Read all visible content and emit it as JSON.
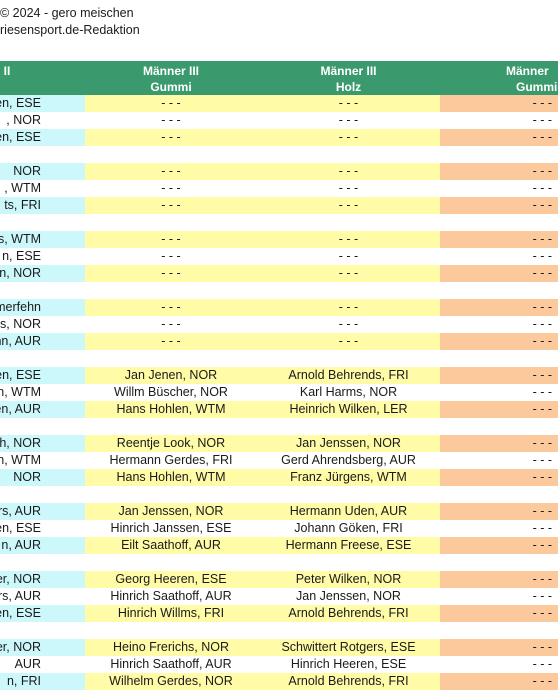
{
  "header": {
    "copyright": "© 2024 - gero meischen",
    "editorial": "riesensport.de-Redaktion"
  },
  "colors": {
    "header_bg": "#3a9a6e",
    "cyan": "#ccf8fc",
    "yellow": "#fffba6",
    "orange": "#fcc99c",
    "white": "#ffffff"
  },
  "table": {
    "headers": [
      {
        "line1": "II",
        "line2": ""
      },
      {
        "line1": "Männer III",
        "line2": "Gummi"
      },
      {
        "line1": "Männer III",
        "line2": "Holz"
      },
      {
        "line1": "Männer",
        "line2": "Gummi"
      }
    ],
    "groups": [
      [
        {
          "shade": "color",
          "c0": "en, ESE",
          "c1": "- - -",
          "c2": "- - -",
          "c3": "- - -"
        },
        {
          "shade": "white",
          "c0": ", NOR",
          "c1": "- - -",
          "c2": "- - -",
          "c3": "- - -"
        },
        {
          "shade": "color",
          "c0": "en, ESE",
          "c1": "- - -",
          "c2": "- - -",
          "c3": "- - -"
        }
      ],
      [
        {
          "shade": "color",
          "c0": "NOR",
          "c1": "- - -",
          "c2": "- - -",
          "c3": "- - -"
        },
        {
          "shade": "white",
          "c0": ", WTM",
          "c1": "- - -",
          "c2": "- - -",
          "c3": "- - -"
        },
        {
          "shade": "color",
          "c0": "ts, FRI",
          "c1": "- - -",
          "c2": "- - -",
          "c3": "- - -"
        }
      ],
      [
        {
          "shade": "color",
          "c0": "efs, WTM",
          "c1": "- - -",
          "c2": "- - -",
          "c3": "- - -"
        },
        {
          "shade": "white",
          "c0": "n, ESE",
          "c1": "- - -",
          "c2": "- - -",
          "c3": "- - -"
        },
        {
          "shade": "color",
          "c0": "en, NOR",
          "c1": "- - -",
          "c2": "- - -",
          "c3": "- - -"
        }
      ],
      [
        {
          "shade": "color",
          "c0": "erumerfehn",
          "c1": "- - -",
          "c2": "- - -",
          "c3": "- - -"
        },
        {
          "shade": "white",
          "c0": "s, NOR",
          "c1": "- - -",
          "c2": "- - -",
          "c3": "- - -"
        },
        {
          "shade": "color",
          "c0": "nn, AUR",
          "c1": "- - -",
          "c2": "- - -",
          "c3": "- - -"
        }
      ],
      [
        {
          "shade": "color",
          "c0": "en, ESE",
          "c1": "Jan Jenen, NOR",
          "c2": "Arnold Behrends, FRI",
          "c3": "- - -"
        },
        {
          "shade": "white",
          "c0": "üschen, WTM",
          "c1": "Willm Büscher, NOR",
          "c2": "Karl Harms, NOR",
          "c3": "- - -"
        },
        {
          "shade": "color",
          "c0": "len, AUR",
          "c1": "Hans Hohlen, WTM",
          "c2": "Heinrich Wilken, LER",
          "c3": "- - -"
        }
      ],
      [
        {
          "shade": "color",
          "c0": "th, NOR",
          "c1": "Reentje Look, NOR",
          "c2": "Jan Jenssen, NOR",
          "c3": "- - -"
        },
        {
          "shade": "white",
          "c0": "en, WTM",
          "c1": "Hermann Gerdes, FRI",
          "c2": "Gerd Ahrendsberg, AUR",
          "c3": "- - -"
        },
        {
          "shade": "color",
          "c0": "NOR",
          "c1": "Hans Hohlen, WTM",
          "c2": "Franz Jürgens, WTM",
          "c3": "- - -"
        }
      ],
      [
        {
          "shade": "color",
          "c0": "rs, AUR",
          "c1": "Jan Jenssen, NOR",
          "c2": "Hermann Uden, AUR",
          "c3": "- - -"
        },
        {
          "shade": "white",
          "c0": "en, ESE",
          "c1": "Hinrich Janssen, ESE",
          "c2": "Johann Göken, FRI",
          "c3": "- - -"
        },
        {
          "shade": "color",
          "c0": "n, AUR",
          "c1": "Eilt Saathoff, AUR",
          "c2": "Hermann Freese, ESE",
          "c3": "- - -"
        }
      ],
      [
        {
          "shade": "color",
          "c0": "er, NOR",
          "c1": "Georg Heeren, ESE",
          "c2": "Peter Wilken, NOR",
          "c3": "- - -"
        },
        {
          "shade": "white",
          "c0": "rs, AUR",
          "c1": "Hinrich Saathoff, AUR",
          "c2": "Jan Jenssen, NOR",
          "c3": "- - -"
        },
        {
          "shade": "color",
          "c0": "en, ESE",
          "c1": "Hinrich Willms, FRI",
          "c2": "Arnold Behrends, FRI",
          "c3": "- - -"
        }
      ],
      [
        {
          "shade": "color",
          "c0": "er, NOR",
          "c1": "Heino Frerichs, NOR",
          "c2": "Schwittert Rotgers, ESE",
          "c3": "- - -"
        },
        {
          "shade": "white",
          "c0": "AUR",
          "c1": "Hinrich Saathoff, AUR",
          "c2": "Hinrich Heeren, ESE",
          "c3": "- - -"
        },
        {
          "shade": "color",
          "c0": "n, FRI",
          "c1": "Wilhelm Gerdes, NOR",
          "c2": "Arnold Behrends, FRI",
          "c3": "- - -"
        }
      ]
    ]
  }
}
